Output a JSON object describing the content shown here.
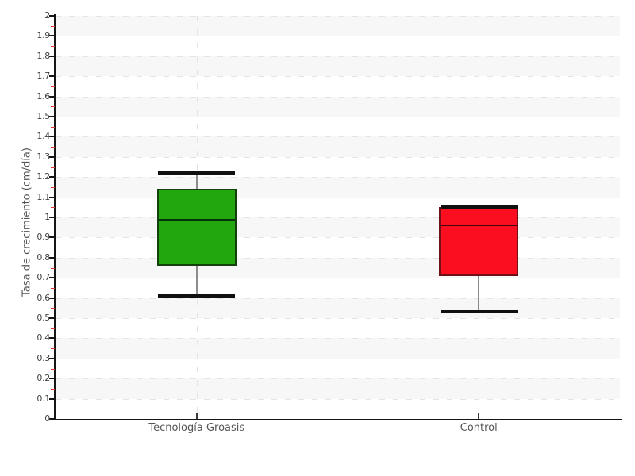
{
  "chart_data": {
    "type": "boxplot",
    "title": "",
    "xlabel": "",
    "ylabel": "Tasa de crecimiento (cm/día)",
    "categories": [
      "Tecnología Groasis",
      "Control"
    ],
    "series": [
      {
        "name": "Tecnología Groasis",
        "min": 0.61,
        "q1": 0.76,
        "median": 0.99,
        "q3": 1.14,
        "max": 1.22,
        "fill": "#23a70f",
        "border": "#144010",
        "median_color": "#04330a"
      },
      {
        "name": "Control",
        "min": 0.53,
        "q1": 0.71,
        "median": 0.96,
        "q3": 1.05,
        "max": 1.05,
        "fill": "#fb0e20",
        "border": "#6f1218",
        "median_color": "#40060c"
      }
    ],
    "ylim": [
      0,
      2
    ],
    "y_tick_step": 0.1,
    "y_minor_tick_step": 0.05,
    "y_tick_labels": [
      "0",
      "0.1",
      "0.2",
      "0.3",
      "0.4",
      "0.5",
      "0.6",
      "0.7",
      "0.8",
      "0.9",
      "1",
      "1.1",
      "1.2",
      "1.3",
      "1.4",
      "1.5",
      "1.6",
      "1.7",
      "1.8",
      "1.9",
      "2"
    ],
    "grid": {
      "horizontal_dashed": true,
      "vertical_dashed_at_categories": true,
      "alternating_bands": true
    },
    "legend": "none"
  },
  "style": {
    "background": "#ffffff",
    "band_color": "#f7f7f7",
    "grid_dash_color": "#e4e4e4",
    "axis_color": "#151515",
    "major_tick_color": "#151515",
    "minor_tick_color": "#e73030",
    "whisker_color": "#8c8c8c",
    "cap_color": "#101010",
    "text_color": "#555555",
    "tick_label_color": "#434343"
  }
}
